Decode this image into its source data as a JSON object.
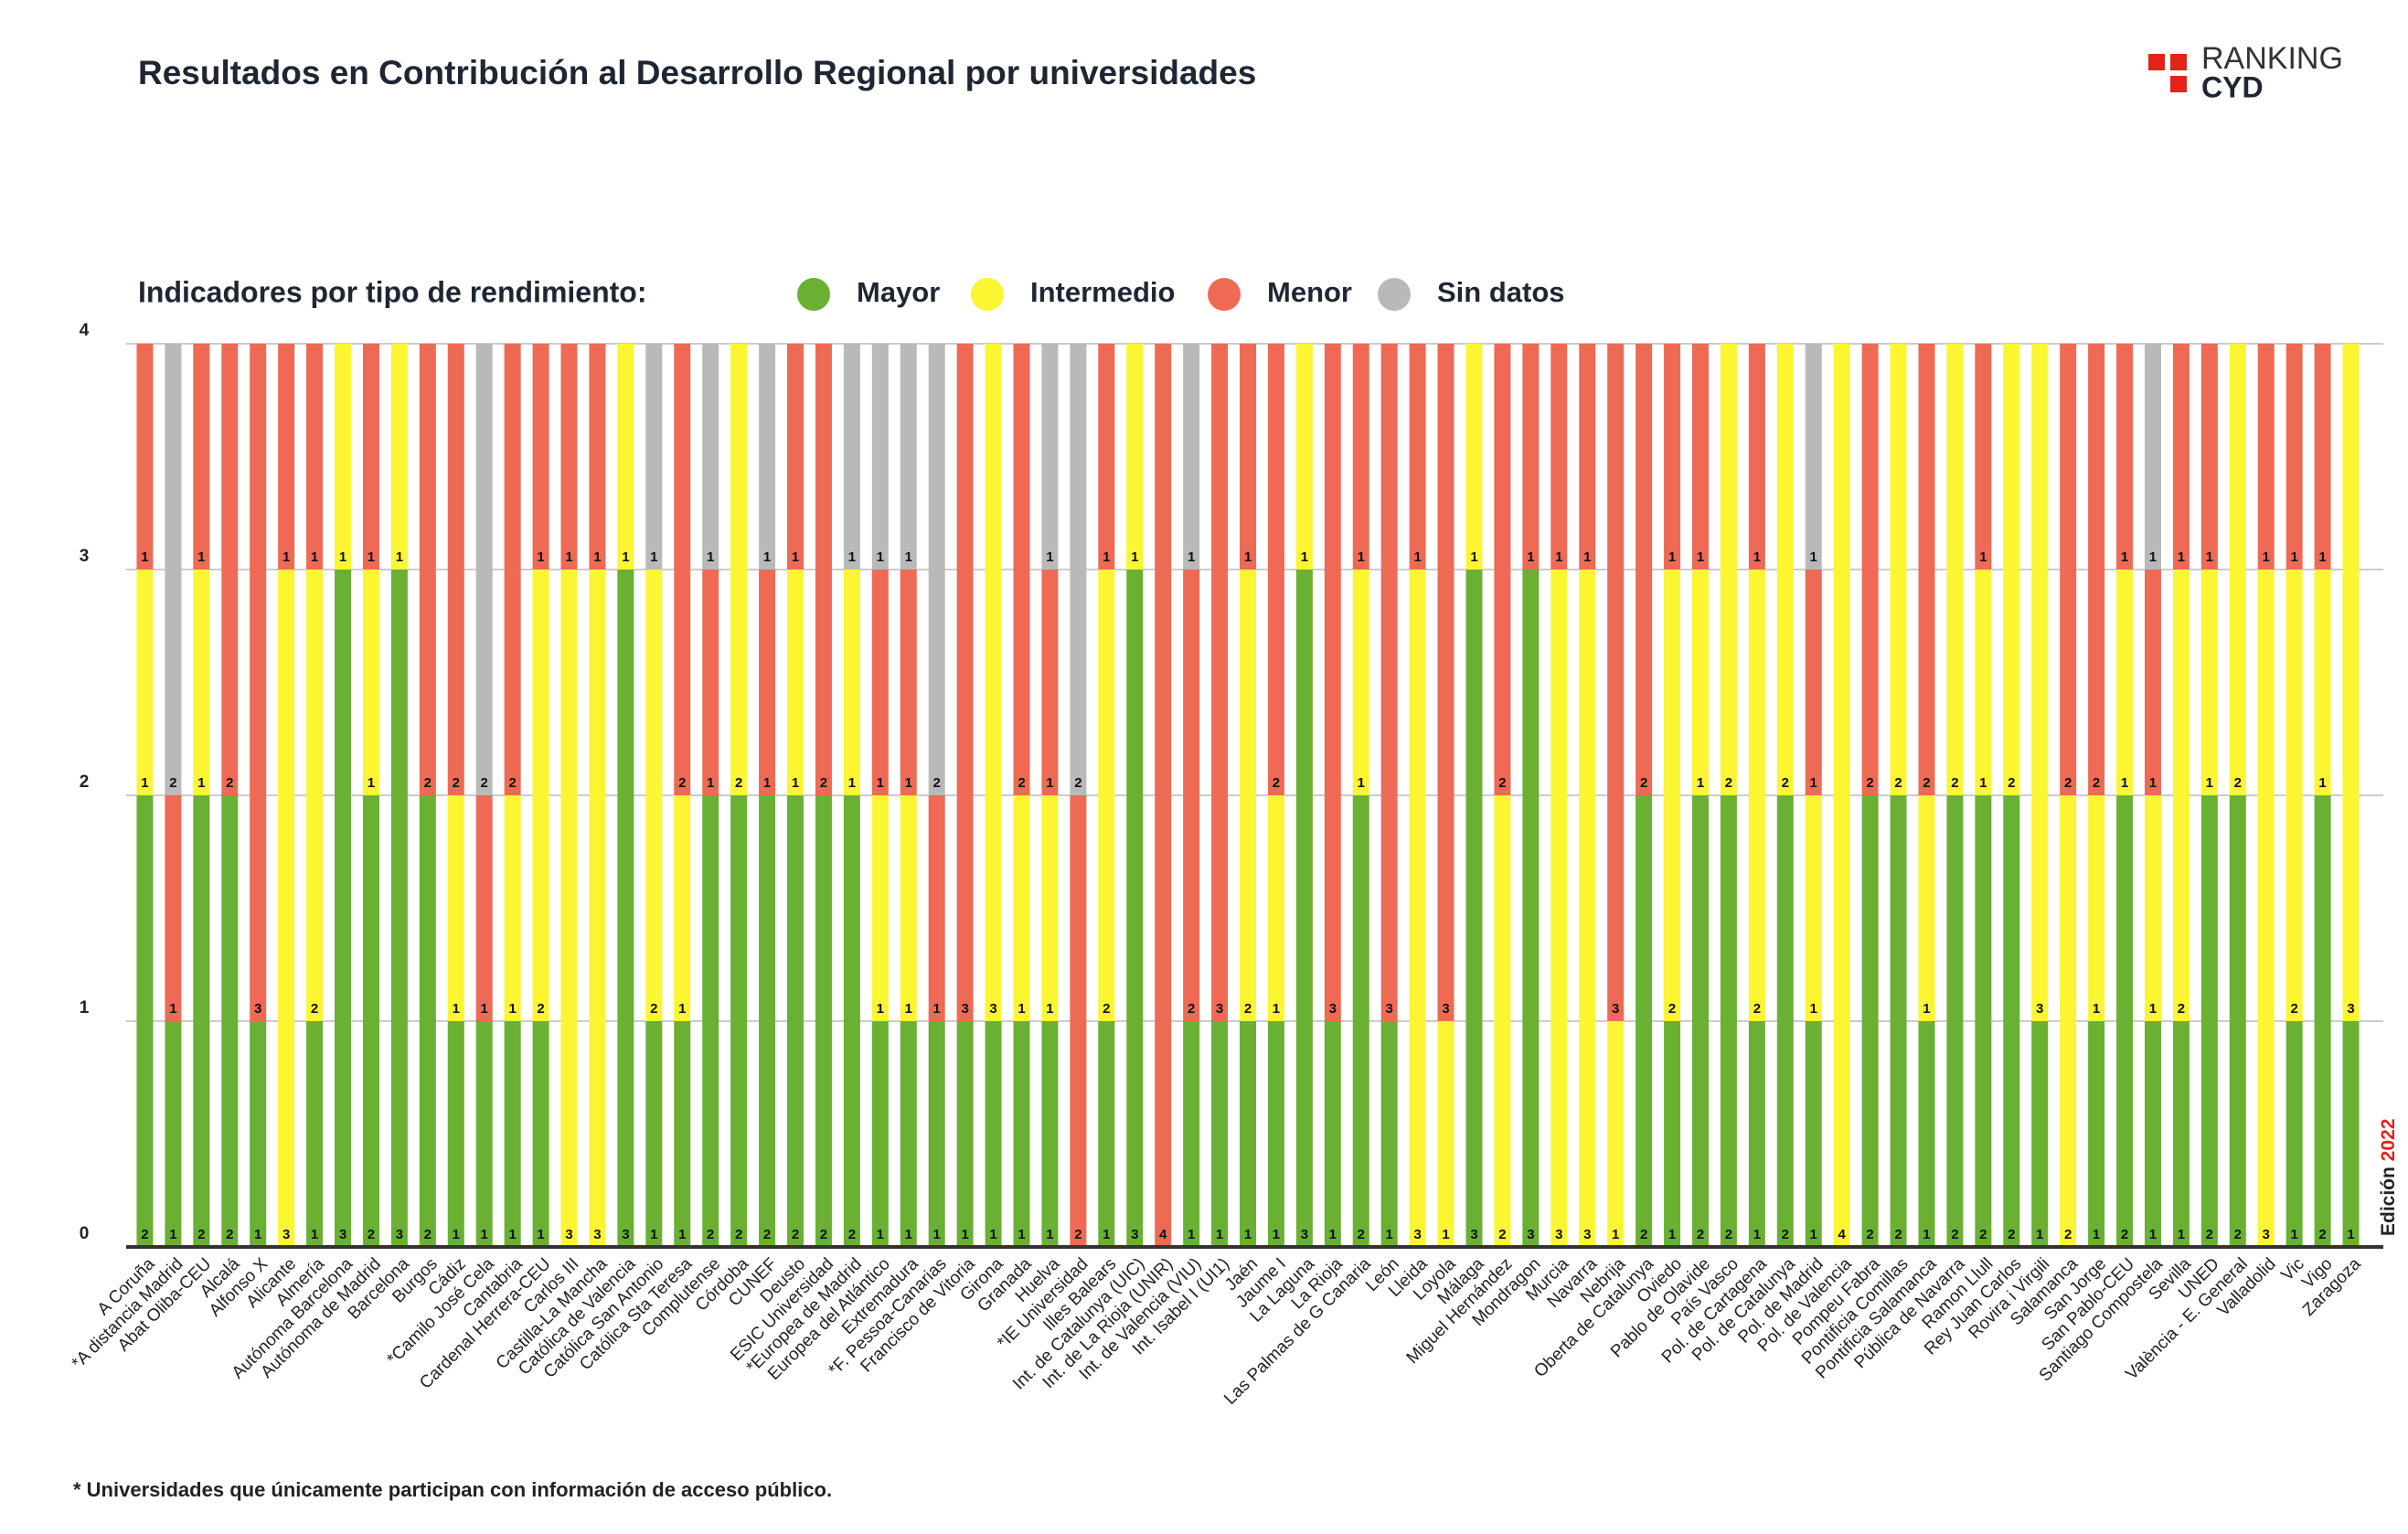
{
  "chart_data": {
    "type": "stacked_bar",
    "title": "Resultados en Contribución al Desarrollo Regional por universidades",
    "legend_title": "Indicadores por tipo de rendimiento:",
    "footnote": "* Universidades que únicamente participan con información de acceso público.",
    "logo": {
      "line1": "RANKING",
      "line2": "CYD"
    },
    "edition": {
      "label": "Edición",
      "year": "2022"
    },
    "categories": [
      "A Coruña",
      "*A distancia Madrid",
      "Abat Oliba-CEU",
      "Alcalá",
      "Alfonso X",
      "Alicante",
      "Almería",
      "Autónoma Barcelona",
      "Autónoma de Madrid",
      "Barcelona",
      "Burgos",
      "Cádiz",
      "*Camilo José Cela",
      "Cantabria",
      "Cardenal Herrera-CEU",
      "Carlos III",
      "Castilla-La Mancha",
      "Católica de Valencia",
      "Católica San Antonio",
      "Católica Sta Teresa",
      "Complutense",
      "Córdoba",
      "CUNEF",
      "Deusto",
      "ESIC Universidad",
      "*Europea de Madrid",
      "Europea del Atlántico",
      "Extremadura",
      "*F. Pessoa-Canarias",
      "Francisco de Vitoria",
      "Girona",
      "Granada",
      "Huelva",
      "*IE Universidad",
      "Illes Balears",
      "Int. de Catalunya (UIC)",
      "Int. de La Rioja (UNIR)",
      "Int. de Valencia (VIU)",
      "Int. Isabel I (UI1)",
      "Jaén",
      "Jaume I",
      "La Laguna",
      "La Rioja",
      "Las Palmas de G Canaria",
      "León",
      "Lleida",
      "Loyola",
      "Málaga",
      "Miguel Hernández",
      "Mondragon",
      "Murcia",
      "Navarra",
      "Nebrija",
      "Oberta de Catalunya",
      "Oviedo",
      "Pablo de Olavide",
      "País Vasco",
      "Pol. de Cartagena",
      "Pol. de Catalunya",
      "Pol. de Madrid",
      "Pol. de Valencia",
      "Pompeu Fabra",
      "Pontificia Comillas",
      "Pontificia Salamanca",
      "Pública de Navarra",
      "Ramon Llull",
      "Rey Juan Carlos",
      "Rovira i Virgili",
      "Salamanca",
      "San Jorge",
      "San Pablo-CEU",
      "Santiago Compostela",
      "Sevilla",
      "UNED",
      "València - E. General",
      "Valladolid",
      "Vic",
      "Vigo",
      "Zaragoza"
    ],
    "series": [
      {
        "name": "Mayor",
        "color": "#6ab033",
        "values": [
          2,
          1,
          2,
          2,
          1,
          0,
          1,
          3,
          2,
          3,
          2,
          1,
          1,
          1,
          1,
          0,
          0,
          3,
          1,
          1,
          2,
          2,
          2,
          2,
          2,
          2,
          1,
          1,
          1,
          1,
          1,
          1,
          1,
          0,
          1,
          3,
          0,
          1,
          1,
          1,
          1,
          3,
          1,
          2,
          1,
          0,
          0,
          3,
          0,
          3,
          0,
          0,
          0,
          2,
          1,
          2,
          2,
          1,
          2,
          1,
          0,
          2,
          2,
          1,
          2,
          2,
          2,
          1,
          0,
          1,
          2,
          1,
          1,
          2,
          2,
          0,
          1,
          2,
          1
        ]
      },
      {
        "name": "Intermedio",
        "color": "#fbf532",
        "values": [
          1,
          0,
          1,
          0,
          0,
          3,
          2,
          1,
          1,
          1,
          0,
          1,
          0,
          1,
          2,
          3,
          3,
          1,
          2,
          1,
          0,
          2,
          0,
          1,
          0,
          1,
          1,
          1,
          0,
          0,
          3,
          1,
          1,
          0,
          2,
          1,
          0,
          0,
          0,
          2,
          1,
          1,
          0,
          1,
          0,
          3,
          1,
          1,
          2,
          0,
          3,
          3,
          1,
          0,
          2,
          1,
          2,
          2,
          2,
          1,
          4,
          0,
          2,
          1,
          2,
          1,
          2,
          3,
          2,
          1,
          1,
          1,
          2,
          1,
          2,
          3,
          2,
          1,
          3
        ]
      },
      {
        "name": "Menor",
        "color": "#ee6a55",
        "values": [
          1,
          1,
          1,
          2,
          3,
          1,
          1,
          0,
          1,
          0,
          2,
          2,
          1,
          2,
          1,
          1,
          1,
          0,
          0,
          2,
          1,
          0,
          1,
          1,
          2,
          0,
          1,
          1,
          1,
          3,
          0,
          2,
          1,
          2,
          1,
          0,
          4,
          2,
          3,
          1,
          2,
          0,
          3,
          1,
          3,
          1,
          3,
          0,
          2,
          1,
          1,
          1,
          3,
          2,
          1,
          1,
          0,
          1,
          0,
          1,
          0,
          2,
          0,
          2,
          0,
          1,
          0,
          0,
          2,
          2,
          1,
          1,
          1,
          1,
          0,
          1,
          1,
          1,
          0
        ]
      },
      {
        "name": "Sin datos",
        "color": "#b9b9b9",
        "values": [
          0,
          2,
          0,
          0,
          0,
          0,
          0,
          0,
          0,
          0,
          0,
          0,
          2,
          0,
          0,
          0,
          0,
          0,
          1,
          0,
          1,
          0,
          1,
          0,
          0,
          1,
          1,
          1,
          2,
          0,
          0,
          0,
          1,
          2,
          0,
          0,
          0,
          1,
          0,
          0,
          0,
          0,
          0,
          0,
          0,
          0,
          0,
          0,
          0,
          0,
          0,
          0,
          0,
          0,
          0,
          0,
          0,
          0,
          0,
          1,
          0,
          0,
          0,
          0,
          0,
          0,
          0,
          0,
          0,
          0,
          0,
          1,
          0,
          0,
          0,
          0,
          0,
          0,
          0
        ]
      }
    ],
    "ylim": [
      0,
      4
    ],
    "yticks": [
      0,
      1,
      2,
      3,
      4
    ],
    "grid": true
  }
}
